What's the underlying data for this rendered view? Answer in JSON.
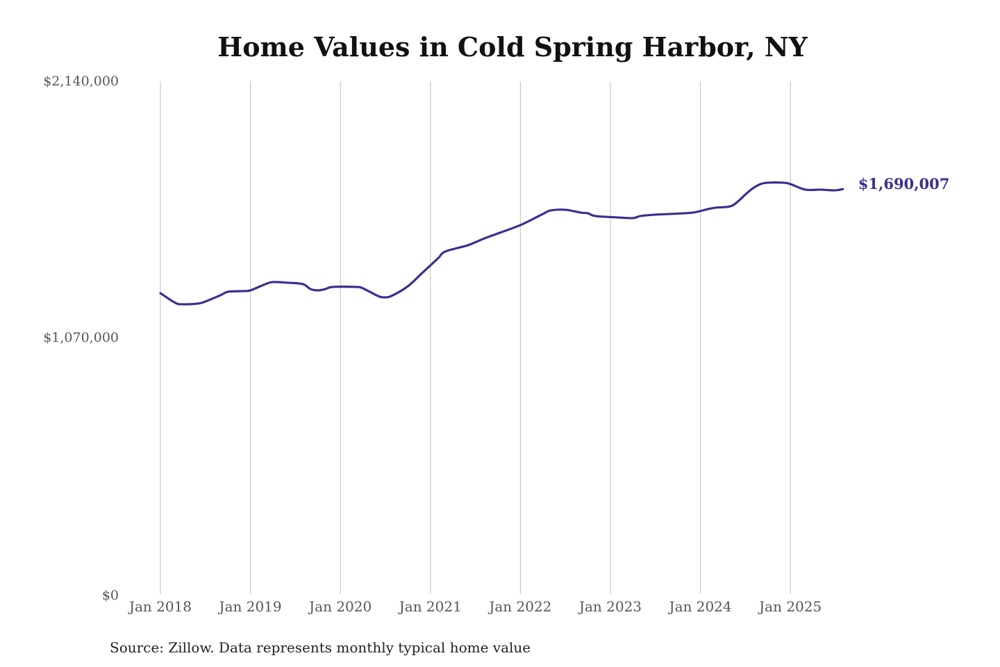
{
  "chart_data": {
    "type": "line",
    "title": "Home Values in Cold Spring Harbor, NY",
    "xlabel": "",
    "ylabel": "",
    "ylim": [
      0,
      2140000
    ],
    "y_ticks": [
      {
        "value": 0,
        "label": "$0"
      },
      {
        "value": 1070000,
        "label": "$1,070,000"
      },
      {
        "value": 2140000,
        "label": "$2,140,000"
      }
    ],
    "x_ticks": [
      {
        "year": 2018,
        "label": "Jan 2018"
      },
      {
        "year": 2019,
        "label": "Jan 2019"
      },
      {
        "year": 2020,
        "label": "Jan 2020"
      },
      {
        "year": 2021,
        "label": "Jan 2021"
      },
      {
        "year": 2022,
        "label": "Jan 2022"
      },
      {
        "year": 2023,
        "label": "Jan 2023"
      },
      {
        "year": 2024,
        "label": "Jan 2024"
      },
      {
        "year": 2025,
        "label": "Jan 2025"
      }
    ],
    "grid": "vertical",
    "series": [
      {
        "name": "Typical home value",
        "color": "#3a2f8f",
        "end_label": "$1,690,007",
        "points": [
          [
            "2018-01",
            1255700
          ],
          [
            "2018-03",
            1215100
          ],
          [
            "2018-04",
            1209300
          ],
          [
            "2018-06",
            1212200
          ],
          [
            "2018-07",
            1220900
          ],
          [
            "2018-09",
            1247000
          ],
          [
            "2018-10",
            1261500
          ],
          [
            "2018-12",
            1264400
          ],
          [
            "2019-01",
            1267300
          ],
          [
            "2019-03",
            1293400
          ],
          [
            "2019-04",
            1302100
          ],
          [
            "2019-06",
            1299200
          ],
          [
            "2019-08",
            1293400
          ],
          [
            "2019-09",
            1273100
          ],
          [
            "2019-10",
            1267300
          ],
          [
            "2019-11",
            1273100
          ],
          [
            "2019-12",
            1281800
          ],
          [
            "2020-03",
            1281800
          ],
          [
            "2020-04",
            1276000
          ],
          [
            "2020-06",
            1244100
          ],
          [
            "2020-07",
            1238300
          ],
          [
            "2020-08",
            1247000
          ],
          [
            "2020-10",
            1284700
          ],
          [
            "2020-12",
            1342700
          ],
          [
            "2021-02",
            1400700
          ],
          [
            "2021-03",
            1429700
          ],
          [
            "2021-06",
            1455800
          ],
          [
            "2021-08",
            1481900
          ],
          [
            "2021-10",
            1505100
          ],
          [
            "2022-01",
            1539900
          ],
          [
            "2022-04",
            1586300
          ],
          [
            "2022-05",
            1600800
          ],
          [
            "2022-07",
            1603700
          ],
          [
            "2022-09",
            1592100
          ],
          [
            "2022-10",
            1589200
          ],
          [
            "2022-11",
            1577600
          ],
          [
            "2023-02",
            1571800
          ],
          [
            "2023-04",
            1568900
          ],
          [
            "2023-05",
            1577600
          ],
          [
            "2023-07",
            1583400
          ],
          [
            "2023-09",
            1586300
          ],
          [
            "2023-12",
            1592100
          ],
          [
            "2024-02",
            1606600
          ],
          [
            "2024-03",
            1612400
          ],
          [
            "2024-05",
            1618200
          ],
          [
            "2024-06",
            1638500
          ],
          [
            "2024-07",
            1667500
          ],
          [
            "2024-08",
            1693600
          ],
          [
            "2024-09",
            1711000
          ],
          [
            "2024-10",
            1716800
          ],
          [
            "2024-12",
            1716800
          ],
          [
            "2025-01",
            1711000
          ],
          [
            "2025-03",
            1687800
          ],
          [
            "2025-05",
            1687800
          ],
          [
            "2025-07",
            1684900
          ],
          [
            "2025-08",
            1690007
          ]
        ]
      }
    ],
    "source": "Source: Zillow. Data represents monthly typical home value"
  }
}
